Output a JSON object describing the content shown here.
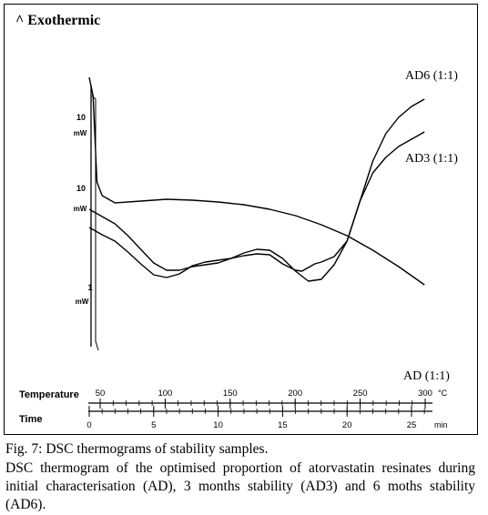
{
  "chart_data": {
    "type": "line",
    "title": "^ Exothermic",
    "x_axes": [
      {
        "label": "Temperature",
        "unit": "°C",
        "ticks": [
          50,
          100,
          150,
          200,
          250,
          300
        ]
      },
      {
        "label": "Time",
        "unit": "min",
        "ticks": [
          0,
          5,
          10,
          15,
          20,
          25
        ]
      }
    ],
    "scale_bars": [
      "10 mW",
      "10 mW",
      "1 mW"
    ],
    "series": [
      {
        "name": "AD6 (1:1)",
        "x": [
          0,
          1,
          2,
          3,
          4,
          5,
          6,
          7,
          8,
          9,
          10,
          11,
          12,
          13,
          14,
          15,
          16,
          16.5,
          17,
          17.5,
          18,
          19,
          20,
          21,
          22,
          23,
          24,
          25,
          26
        ],
        "y": [
          165,
          157,
          150,
          138,
          125,
          113,
          110,
          114,
          123,
          127,
          129,
          131,
          134,
          136,
          135,
          125,
          118,
          117,
          121,
          125,
          127,
          133,
          150,
          194,
          238,
          268,
          286,
          298,
          306
        ]
      },
      {
        "name": "AD3 (1:1)",
        "x": [
          0,
          1,
          2,
          3,
          4,
          5,
          6,
          7,
          8,
          9,
          10,
          11,
          12,
          13,
          14,
          15,
          16,
          17,
          18,
          19,
          20,
          21,
          22,
          23,
          24,
          25,
          26
        ],
        "y": [
          185,
          177,
          169,
          156,
          141,
          126,
          118,
          118,
          122,
          124,
          126,
          131,
          137,
          141,
          140,
          131,
          117,
          106,
          108,
          124,
          150,
          194,
          225,
          242,
          254,
          262,
          270
        ]
      },
      {
        "name": "AD (1:1)",
        "x": [
          0,
          0.3,
          0.6,
          1,
          2,
          4,
          6,
          8,
          10,
          12,
          14,
          16,
          18,
          20,
          22,
          24,
          26
        ],
        "y": [
          330,
          310,
          215,
          200,
          192,
          194,
          196,
          195,
          193,
          190,
          185,
          178,
          168,
          156,
          140,
          122,
          102
        ]
      }
    ],
    "xlim": [
      -1,
      27
    ],
    "ylim": [
      80,
      360
    ],
    "grid": false
  },
  "caption": {
    "title": "Fig. 7: DSC thermograms of stability samples.",
    "body": "DSC thermogram of the optimised proportion of atorvastatin resinates during initial characterisation (AD), 3 months stability (AD3) and 6 moths stability (AD6)."
  }
}
